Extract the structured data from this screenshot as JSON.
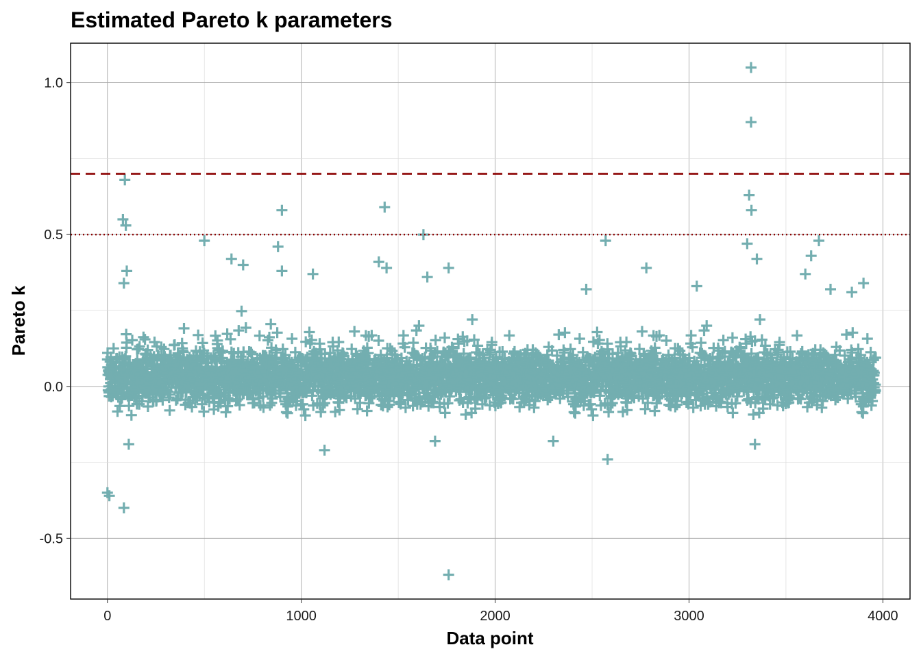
{
  "chart_data": {
    "type": "scatter",
    "title": "Estimated Pareto k parameters",
    "xlabel": "Data point",
    "ylabel": "Pareto k",
    "xlim": [
      -190,
      4140
    ],
    "ylim": [
      -0.7,
      1.13
    ],
    "x_ticks": [
      0,
      1000,
      2000,
      3000,
      4000
    ],
    "x_tick_labels": [
      "0",
      "1000",
      "2000",
      "3000",
      "4000"
    ],
    "y_ticks": [
      -0.5,
      0.0,
      0.5,
      1.0
    ],
    "y_tick_labels": [
      "-0.5",
      "0.0",
      "0.5",
      "1.0"
    ],
    "grid": true,
    "marker": "plus",
    "point_color": "#73aeb0",
    "n_points": 3964,
    "reference_lines": [
      {
        "y": 0.7,
        "style": "dashed",
        "color": "#8b0000"
      },
      {
        "y": 0.5,
        "style": "dotted",
        "color": "#8b0000"
      }
    ],
    "bulk_distribution": {
      "center": 0.03,
      "typical_range": [
        -0.12,
        0.18
      ]
    },
    "notable_points": [
      {
        "x": 3320,
        "y": 1.05
      },
      {
        "x": 3320,
        "y": 0.87
      },
      {
        "x": 3310,
        "y": 0.63
      },
      {
        "x": 3322,
        "y": 0.58
      },
      {
        "x": 90,
        "y": 0.68
      },
      {
        "x": 80,
        "y": 0.55
      },
      {
        "x": 95,
        "y": 0.53
      },
      {
        "x": 900,
        "y": 0.58
      },
      {
        "x": 1430,
        "y": 0.59
      },
      {
        "x": 1630,
        "y": 0.5
      },
      {
        "x": 3300,
        "y": 0.47
      },
      {
        "x": 3670,
        "y": 0.48
      },
      {
        "x": 2570,
        "y": 0.48
      },
      {
        "x": 500,
        "y": 0.48
      },
      {
        "x": 880,
        "y": 0.46
      },
      {
        "x": 3350,
        "y": 0.42
      },
      {
        "x": 3630,
        "y": 0.43
      },
      {
        "x": 1400,
        "y": 0.41
      },
      {
        "x": 1440,
        "y": 0.39
      },
      {
        "x": 1760,
        "y": 0.39
      },
      {
        "x": 2780,
        "y": 0.39
      },
      {
        "x": 900,
        "y": 0.38
      },
      {
        "x": 640,
        "y": 0.42
      },
      {
        "x": 700,
        "y": 0.4
      },
      {
        "x": 3600,
        "y": 0.37
      },
      {
        "x": 1650,
        "y": 0.36
      },
      {
        "x": 1060,
        "y": 0.37
      },
      {
        "x": 3900,
        "y": 0.34
      },
      {
        "x": 3730,
        "y": 0.32
      },
      {
        "x": 3840,
        "y": 0.31
      },
      {
        "x": 3040,
        "y": 0.33
      },
      {
        "x": 2470,
        "y": 0.32
      },
      {
        "x": 100,
        "y": 0.38
      },
      {
        "x": 85,
        "y": 0.34
      },
      {
        "x": 0,
        "y": -0.35
      },
      {
        "x": 10,
        "y": -0.36
      },
      {
        "x": 85,
        "y": -0.4
      },
      {
        "x": 1760,
        "y": -0.62
      },
      {
        "x": 2580,
        "y": -0.24
      },
      {
        "x": 1120,
        "y": -0.21
      },
      {
        "x": 3340,
        "y": -0.19
      },
      {
        "x": 1690,
        "y": -0.18
      },
      {
        "x": 2300,
        "y": -0.18
      },
      {
        "x": 110,
        "y": -0.19
      }
    ]
  }
}
